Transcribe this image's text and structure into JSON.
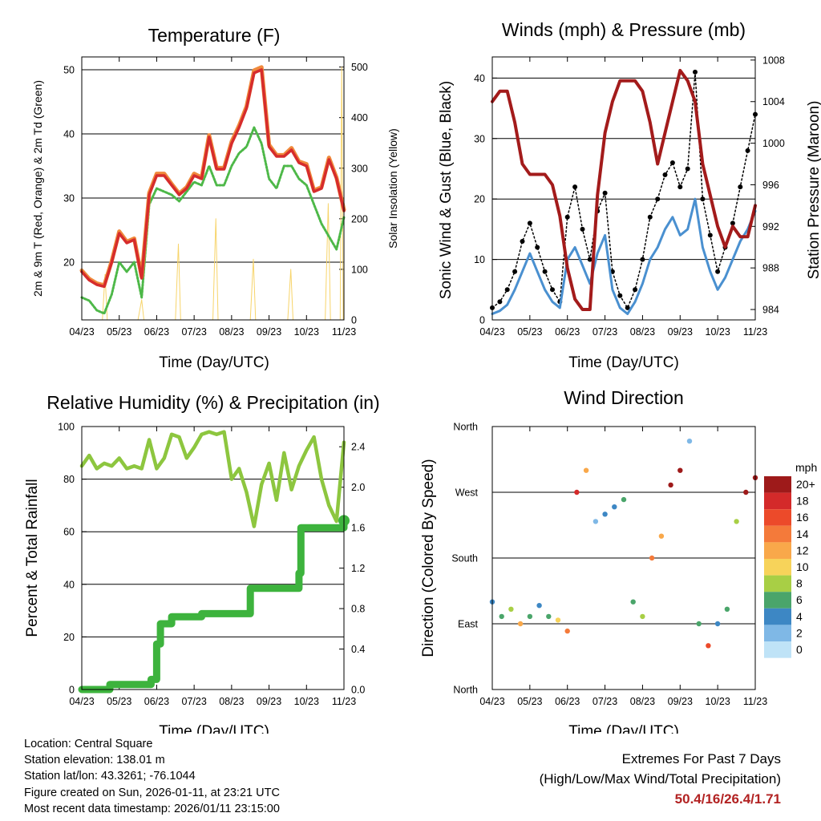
{
  "titles": {
    "temperature": "Temperature (F)",
    "winds": "Winds (mph) & Pressure (mb)",
    "humidity": "Relative Humidity (%) & Precipitation (in)",
    "direction": "Wind Direction"
  },
  "axis_labels": {
    "time": "Time (Day/UTC)",
    "temp_left": "2m & 9m T (Red, Orange) & 2m Td (Green)",
    "temp_right": "Solar Insolation (Yellow)",
    "wind_left": "Sonic Wind & Gust (Blue, Black)",
    "wind_right": "Station Pressure (Maroon)",
    "rh_left": "Percent & Total Rainfall",
    "dir_left": "Direction (Colored By Speed)"
  },
  "x_ticks": [
    "04/23",
    "05/23",
    "06/23",
    "07/23",
    "08/23",
    "09/23",
    "10/23",
    "11/23"
  ],
  "colors": {
    "temp2m": "#d62c2c",
    "temp9m": "#f08a3c",
    "dewpoint": "#4db848",
    "solar": "#f7d46a",
    "gust": "#000000",
    "wind": "#4a90d0",
    "pressure": "#a31b1b",
    "rh": "#8dc63f",
    "precip": "#3db33d"
  },
  "legend": {
    "unit": "mph",
    "labels": [
      "20+",
      "18",
      "16",
      "14",
      "12",
      "10",
      "8",
      "6",
      "4",
      "2",
      "0"
    ],
    "colors": [
      "#9e1a1a",
      "#d42a2a",
      "#ec4a2a",
      "#f47a3a",
      "#f9a84a",
      "#f7d35a",
      "#a8cf45",
      "#4aa56a",
      "#3d87c4",
      "#7fb8e6",
      "#bfe3f7"
    ]
  },
  "chart_data": [
    {
      "id": "temperature",
      "type": "line",
      "title": "Temperature (F)",
      "xlabel": "Time (Day/UTC)",
      "ylabel": "2m & 9m T (Red, Orange) & 2m Td (Green)",
      "y2label": "Solar Insolation (Yellow)",
      "x_ticks": [
        "04/23",
        "05/23",
        "06/23",
        "07/23",
        "08/23",
        "09/23",
        "10/23",
        "11/23"
      ],
      "ylim": [
        11,
        52
      ],
      "yticks": [
        20,
        30,
        40,
        50
      ],
      "y2lim": [
        0,
        520
      ],
      "y2ticks": [
        0,
        100,
        200,
        300,
        400,
        500
      ],
      "series": [
        {
          "name": "2m T",
          "x": [
            0,
            0.2,
            0.4,
            0.6,
            0.8,
            1.0,
            1.2,
            1.4,
            1.6,
            1.8,
            2.0,
            2.2,
            2.4,
            2.6,
            2.8,
            3.0,
            3.2,
            3.4,
            3.6,
            3.8,
            4.0,
            4.2,
            4.4,
            4.6,
            4.8,
            5.0,
            5.2,
            5.4,
            5.6,
            5.8,
            6.0,
            6.2,
            6.4,
            6.6,
            6.8,
            7.0
          ],
          "values": [
            18.5,
            17.2,
            16.5,
            16.2,
            20,
            24.5,
            23,
            23.5,
            17.5,
            30.5,
            33.5,
            33.5,
            32,
            30.5,
            31.5,
            33.5,
            33,
            39.5,
            34.5,
            34.5,
            38.5,
            41,
            44,
            49.5,
            50,
            38,
            36.5,
            36.5,
            37.5,
            35.5,
            35,
            31,
            31.5,
            36,
            33,
            28
          ]
        },
        {
          "name": "9m T",
          "x": [
            0,
            0.2,
            0.4,
            0.6,
            0.8,
            1.0,
            1.2,
            1.4,
            1.6,
            1.8,
            2.0,
            2.2,
            2.4,
            2.6,
            2.8,
            3.0,
            3.2,
            3.4,
            3.6,
            3.8,
            4.0,
            4.2,
            4.4,
            4.6,
            4.8,
            5.0,
            5.2,
            5.4,
            5.6,
            5.8,
            6.0,
            6.2,
            6.4,
            6.6,
            6.8,
            7.0
          ],
          "values": [
            18.7,
            17.4,
            16.7,
            16.4,
            20.2,
            24.8,
            23.2,
            23.7,
            17.7,
            30.8,
            33.8,
            33.8,
            32.2,
            30.7,
            31.7,
            33.8,
            33.2,
            39.8,
            34.7,
            34.7,
            38.8,
            41.3,
            44.3,
            49.9,
            50.4,
            38.3,
            36.7,
            36.7,
            37.8,
            35.7,
            35.3,
            31.2,
            31.7,
            36.3,
            33.2,
            28.2
          ]
        },
        {
          "name": "2m Td",
          "x": [
            0,
            0.2,
            0.4,
            0.6,
            0.8,
            1.0,
            1.2,
            1.4,
            1.6,
            1.8,
            2.0,
            2.2,
            2.4,
            2.6,
            2.8,
            3.0,
            3.2,
            3.4,
            3.6,
            3.8,
            4.0,
            4.2,
            4.4,
            4.6,
            4.8,
            5.0,
            5.2,
            5.4,
            5.6,
            5.8,
            6.0,
            6.2,
            6.4,
            6.6,
            6.8,
            7.0
          ],
          "values": [
            14.5,
            14,
            12.5,
            12,
            15,
            20,
            18.5,
            20,
            14.5,
            29,
            31.5,
            31,
            30.5,
            29.5,
            31,
            32.5,
            32,
            35,
            32,
            32,
            35,
            37,
            38,
            41,
            38.5,
            33,
            31.5,
            35,
            35,
            33,
            32,
            29,
            26,
            24,
            22,
            27
          ]
        },
        {
          "name": "Solar Insolation",
          "axis": "right",
          "x": [
            0.55,
            0.62,
            0.68,
            1.5,
            1.6,
            1.66,
            2.5,
            2.58,
            2.64,
            3.5,
            3.58,
            3.64,
            4.5,
            4.58,
            4.64,
            5.5,
            5.58,
            5.64,
            6.5,
            6.58,
            6.64,
            6.9,
            6.94,
            6.98
          ],
          "values": [
            0,
            90,
            0,
            0,
            40,
            0,
            0,
            150,
            0,
            0,
            200,
            0,
            0,
            120,
            0,
            0,
            100,
            0,
            0,
            230,
            0,
            0,
            500,
            0
          ]
        }
      ]
    },
    {
      "id": "winds",
      "type": "line",
      "title": "Winds (mph) & Pressure (mb)",
      "xlabel": "Time (Day/UTC)",
      "ylabel": "Sonic Wind & Gust (Blue, Black)",
      "y2label": "Station Pressure (Maroon)",
      "x_ticks": [
        "04/23",
        "05/23",
        "06/23",
        "07/23",
        "08/23",
        "09/23",
        "10/23",
        "11/23"
      ],
      "ylim": [
        0,
        43.5
      ],
      "yticks": [
        0,
        10,
        20,
        30,
        40
      ],
      "y2lim": [
        983,
        1008.3
      ],
      "y2ticks": [
        984,
        988,
        992,
        996,
        1000,
        1004,
        1008
      ],
      "series": [
        {
          "name": "Sonic Wind",
          "x": [
            0,
            0.2,
            0.4,
            0.6,
            0.8,
            1.0,
            1.2,
            1.4,
            1.6,
            1.8,
            2.0,
            2.2,
            2.4,
            2.6,
            2.8,
            3.0,
            3.2,
            3.4,
            3.6,
            3.8,
            4.0,
            4.2,
            4.4,
            4.6,
            4.8,
            5.0,
            5.2,
            5.4,
            5.6,
            5.8,
            6.0,
            6.2,
            6.4,
            6.6,
            6.8,
            7.0
          ],
          "values": [
            1,
            1.5,
            2.5,
            5,
            8,
            11,
            8,
            5,
            3,
            2,
            10,
            12,
            9,
            6,
            11,
            14,
            5,
            2,
            1,
            3,
            6,
            10,
            12,
            15,
            17,
            14,
            15,
            20,
            12,
            8,
            5,
            7,
            10,
            13,
            15,
            18
          ]
        },
        {
          "name": "Sonic Gust",
          "x": [
            0,
            0.2,
            0.4,
            0.6,
            0.8,
            1.0,
            1.2,
            1.4,
            1.6,
            1.8,
            2.0,
            2.2,
            2.4,
            2.6,
            2.8,
            3.0,
            3.2,
            3.4,
            3.6,
            3.8,
            4.0,
            4.2,
            4.4,
            4.6,
            4.8,
            5.0,
            5.2,
            5.4,
            5.6,
            5.8,
            6.0,
            6.2,
            6.4,
            6.6,
            6.8,
            7.0
          ],
          "values": [
            2,
            3,
            5,
            8,
            13,
            16,
            12,
            8,
            5,
            3,
            17,
            22,
            15,
            10,
            18,
            21,
            8,
            4,
            2,
            5,
            10,
            17,
            20,
            24,
            26,
            22,
            25,
            41,
            20,
            14,
            8,
            12,
            16,
            22,
            28,
            34
          ]
        },
        {
          "name": "Station Pressure",
          "axis": "right",
          "x": [
            0,
            0.2,
            0.4,
            0.6,
            0.8,
            1.0,
            1.2,
            1.4,
            1.6,
            1.8,
            2.0,
            2.2,
            2.4,
            2.6,
            2.8,
            3.0,
            3.2,
            3.4,
            3.6,
            3.8,
            4.0,
            4.2,
            4.4,
            4.6,
            4.8,
            5.0,
            5.2,
            5.4,
            5.6,
            5.8,
            6.0,
            6.2,
            6.4,
            6.6,
            6.8,
            7.0
          ],
          "values": [
            1004,
            1005,
            1005,
            1002,
            998,
            997,
            997,
            997,
            996,
            993,
            988,
            985,
            984,
            984,
            995,
            1001,
            1004,
            1006,
            1006,
            1006,
            1005,
            1002,
            998,
            1001,
            1004,
            1007,
            1006,
            1004,
            998,
            995,
            992,
            990,
            992,
            991,
            991,
            994
          ]
        }
      ]
    },
    {
      "id": "humidity",
      "type": "line",
      "title": "Relative Humidity (%) & Precipitation (in)",
      "xlabel": "Time (Day/UTC)",
      "ylabel": "Percent & Total Rainfall",
      "x_ticks": [
        "04/23",
        "05/23",
        "06/23",
        "07/23",
        "08/23",
        "09/23",
        "10/23",
        "11/23"
      ],
      "ylim": [
        0,
        100
      ],
      "yticks": [
        0,
        20,
        40,
        60,
        80,
        100
      ],
      "y2lim": [
        0,
        2.6
      ],
      "y2ticks": [
        0.0,
        0.4,
        0.8,
        1.2,
        1.6,
        2.0,
        2.4
      ],
      "series": [
        {
          "name": "Relative Humidity",
          "x": [
            0,
            0.2,
            0.4,
            0.6,
            0.8,
            1.0,
            1.2,
            1.4,
            1.6,
            1.8,
            2.0,
            2.2,
            2.4,
            2.6,
            2.8,
            3.0,
            3.2,
            3.4,
            3.6,
            3.8,
            4.0,
            4.2,
            4.4,
            4.6,
            4.8,
            5.0,
            5.2,
            5.4,
            5.6,
            5.8,
            6.0,
            6.2,
            6.4,
            6.6,
            6.8,
            7.0
          ],
          "values": [
            85,
            89,
            84,
            86,
            85,
            88,
            84,
            85,
            84,
            95,
            84,
            88,
            97,
            96,
            88,
            92,
            97,
            98,
            97,
            98,
            80,
            84,
            75,
            62,
            78,
            86,
            72,
            90,
            76,
            85,
            91,
            96,
            80,
            70,
            64,
            94
          ]
        },
        {
          "name": "Total Rainfall",
          "axis": "right",
          "x": [
            0,
            0.7,
            0.75,
            1.8,
            1.85,
            2.0,
            2.1,
            2.4,
            3.2,
            4.4,
            4.5,
            5.0,
            5.6,
            5.8,
            5.85,
            6.0,
            6.5,
            6.9,
            7.0
          ],
          "values": [
            0,
            0,
            0.05,
            0.05,
            0.1,
            0.45,
            0.65,
            0.72,
            0.75,
            0.75,
            1.0,
            1.0,
            1.0,
            1.15,
            1.6,
            1.6,
            1.6,
            1.6,
            1.67
          ]
        }
      ]
    },
    {
      "id": "direction",
      "type": "scatter",
      "title": "Wind Direction",
      "xlabel": "Time (Day/UTC)",
      "ylabel": "Direction (Colored By Speed)",
      "x_ticks": [
        "04/23",
        "05/23",
        "06/23",
        "07/23",
        "08/23",
        "09/23",
        "10/23",
        "11/23"
      ],
      "y_ticks": [
        "North",
        "East",
        "South",
        "West",
        "North"
      ],
      "ylim": [
        0,
        360
      ],
      "series": [
        {
          "name": "Direction",
          "x": [
            0,
            0.25,
            0.5,
            0.75,
            1.0,
            1.25,
            1.5,
            1.75,
            2.0,
            2.25,
            2.5,
            2.75,
            3.0,
            3.25,
            3.5,
            3.75,
            4.0,
            4.25,
            4.5,
            4.75,
            5.0,
            5.25,
            5.5,
            5.75,
            6.0,
            6.25,
            6.5,
            6.75,
            7.0
          ],
          "values": [
            120,
            100,
            110,
            90,
            100,
            115,
            100,
            95,
            80,
            270,
            300,
            230,
            240,
            250,
            260,
            120,
            100,
            180,
            210,
            280,
            300,
            340,
            90,
            60,
            90,
            110,
            230,
            270,
            290
          ],
          "speeds": [
            3,
            5,
            8,
            12,
            6,
            4,
            6,
            10,
            14,
            18,
            12,
            2,
            3,
            4,
            5,
            6,
            8,
            14,
            12,
            19,
            20,
            2,
            6,
            15,
            4,
            6,
            8,
            20,
            20
          ]
        }
      ]
    }
  ],
  "info": {
    "location": "Location: Central Square",
    "elevation": "Station elevation: 138.01 m",
    "latlon": "Station lat/lon: 43.3261; -76.1044",
    "created": "Figure created on Sun, 2026-01-11, at 23:21 UTC",
    "recent": "Most recent data timestamp: 2026/01/11 23:15:00"
  },
  "extremes": {
    "title": "Extremes For Past 7 Days",
    "subtitle": "(High/Low/Max Wind/Total Precipitation)",
    "values": "50.4/16/26.4/1.71"
  }
}
